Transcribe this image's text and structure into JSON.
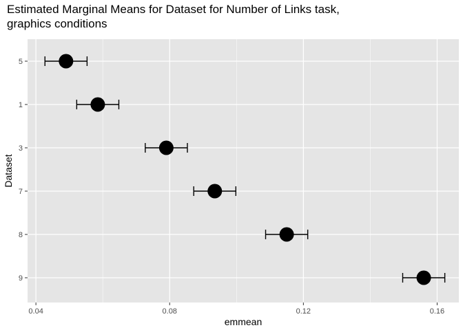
{
  "chart_data": {
    "type": "scatter",
    "title_lines": [
      "Estimated Marginal Means for Dataset for Number of Links task,",
      "graphics conditions"
    ],
    "xlabel": "emmean",
    "ylabel": "Dataset",
    "xlim": [
      0.0375,
      0.1665
    ],
    "x_ticks": [
      0.04,
      0.08,
      0.12,
      0.16
    ],
    "x_tick_labels": [
      "0.04",
      "0.08",
      "0.12",
      "0.16"
    ],
    "categories": [
      "5",
      "1",
      "3",
      "7",
      "8",
      "9"
    ],
    "points": [
      {
        "dataset": "5",
        "emmean": 0.049,
        "lower": 0.0427,
        "upper": 0.0553
      },
      {
        "dataset": "1",
        "emmean": 0.0585,
        "lower": 0.0522,
        "upper": 0.0648
      },
      {
        "dataset": "3",
        "emmean": 0.079,
        "lower": 0.0727,
        "upper": 0.0853
      },
      {
        "dataset": "7",
        "emmean": 0.0935,
        "lower": 0.0872,
        "upper": 0.0998
      },
      {
        "dataset": "8",
        "emmean": 0.115,
        "lower": 0.1087,
        "upper": 0.1213
      },
      {
        "dataset": "9",
        "emmean": 0.156,
        "lower": 0.1497,
        "upper": 0.1623
      }
    ],
    "grid": true,
    "legend": "none",
    "colors": {
      "panel_background": "#e5e5e5",
      "grid_major": "#ffffff",
      "point": "#000000",
      "errorbar": "#000000",
      "tick_label": "#4d4d4d"
    }
  }
}
